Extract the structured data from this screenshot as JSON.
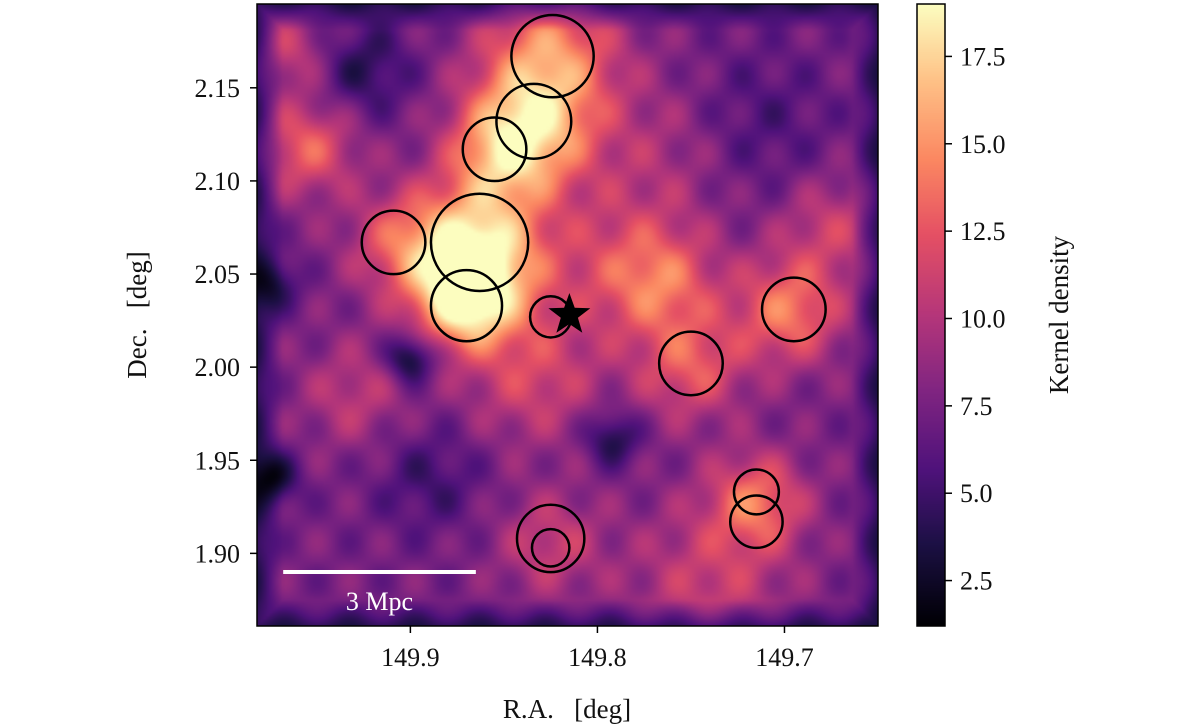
{
  "chart_data": {
    "type": "heatmap",
    "xlabel": "R.A.   [deg]",
    "ylabel": "Dec.   [deg]",
    "xlim": [
      149.982,
      149.65
    ],
    "ylim": [
      1.861,
      2.195
    ],
    "xticks": [
      149.9,
      149.8,
      149.7
    ],
    "xtick_labels": [
      "149.9",
      "149.8",
      "149.7"
    ],
    "yticks": [
      1.9,
      1.95,
      2.0,
      2.05,
      2.1,
      2.15
    ],
    "ytick_labels": [
      "1.90",
      "1.95",
      "2.00",
      "2.05",
      "2.10",
      "2.15"
    ],
    "colormap": "magma",
    "colorbar": {
      "label": "Kernel density",
      "range": [
        1.2,
        19.0
      ],
      "ticks": [
        2.5,
        5.0,
        7.5,
        10.0,
        12.5,
        15.0,
        17.5
      ],
      "tick_labels": [
        "2.5",
        "5.0",
        "7.5",
        "10.0",
        "12.5",
        "15.0",
        "17.5"
      ]
    },
    "density_background": 7.5,
    "density_peaks": [
      {
        "ra": 149.825,
        "dec": 2.17,
        "value": 14,
        "width": 0.025
      },
      {
        "ra": 149.835,
        "dec": 2.13,
        "value": 15.5,
        "width": 0.024
      },
      {
        "ra": 149.852,
        "dec": 2.112,
        "value": 13,
        "width": 0.02
      },
      {
        "ra": 149.865,
        "dec": 2.06,
        "value": 19,
        "width": 0.024
      },
      {
        "ra": 149.87,
        "dec": 2.035,
        "value": 16,
        "width": 0.018
      },
      {
        "ra": 149.905,
        "dec": 2.067,
        "value": 12,
        "width": 0.02
      },
      {
        "ra": 149.955,
        "dec": 2.118,
        "value": 13,
        "width": 0.018
      },
      {
        "ra": 149.965,
        "dec": 2.17,
        "value": 11,
        "width": 0.015
      },
      {
        "ra": 149.698,
        "dec": 2.03,
        "value": 14,
        "width": 0.02
      },
      {
        "ra": 149.75,
        "dec": 2.0,
        "value": 12.5,
        "width": 0.02
      },
      {
        "ra": 149.765,
        "dec": 2.045,
        "value": 12,
        "width": 0.02
      },
      {
        "ra": 149.715,
        "dec": 1.928,
        "value": 13.5,
        "width": 0.018
      },
      {
        "ra": 149.825,
        "dec": 1.905,
        "value": 11,
        "width": 0.02
      },
      {
        "ra": 149.79,
        "dec": 2.055,
        "value": 11,
        "width": 0.03
      },
      {
        "ra": 149.835,
        "dec": 1.995,
        "value": 11.5,
        "width": 0.025
      },
      {
        "ra": 149.675,
        "dec": 2.075,
        "value": 11,
        "width": 0.02
      },
      {
        "ra": 149.74,
        "dec": 1.885,
        "value": 11,
        "width": 0.03
      },
      {
        "ra": 149.93,
        "dec": 1.985,
        "value": 10.5,
        "width": 0.02
      },
      {
        "ra": 149.76,
        "dec": 2.12,
        "value": 10,
        "width": 0.03
      },
      {
        "ra": 149.9,
        "dec": 2.005,
        "value": 1.5,
        "width": 0.009
      },
      {
        "ra": 149.792,
        "dec": 1.962,
        "value": 3,
        "width": 0.01
      },
      {
        "ra": 149.925,
        "dec": 2.16,
        "value": 4,
        "width": 0.018
      },
      {
        "ra": 149.72,
        "dec": 2.13,
        "value": 5,
        "width": 0.03
      },
      {
        "ra": 149.975,
        "dec": 1.94,
        "value": 2,
        "width": 0.01
      },
      {
        "ra": 149.975,
        "dec": 2.045,
        "value": 3,
        "width": 0.01
      },
      {
        "ra": 149.89,
        "dec": 1.94,
        "value": 5,
        "width": 0.02
      }
    ],
    "circles": [
      {
        "ra": 149.824,
        "dec": 2.167,
        "radius": 0.022
      },
      {
        "ra": 149.834,
        "dec": 2.132,
        "radius": 0.02
      },
      {
        "ra": 149.855,
        "dec": 2.117,
        "radius": 0.017
      },
      {
        "ra": 149.863,
        "dec": 2.067,
        "radius": 0.026
      },
      {
        "ra": 149.909,
        "dec": 2.067,
        "radius": 0.017
      },
      {
        "ra": 149.87,
        "dec": 2.033,
        "radius": 0.019
      },
      {
        "ra": 149.825,
        "dec": 2.027,
        "radius": 0.011
      },
      {
        "ra": 149.75,
        "dec": 2.002,
        "radius": 0.017
      },
      {
        "ra": 149.695,
        "dec": 2.031,
        "radius": 0.017
      },
      {
        "ra": 149.715,
        "dec": 1.933,
        "radius": 0.012
      },
      {
        "ra": 149.715,
        "dec": 1.917,
        "radius": 0.014
      },
      {
        "ra": 149.825,
        "dec": 1.908,
        "radius": 0.018
      },
      {
        "ra": 149.825,
        "dec": 1.903,
        "radius": 0.01
      }
    ],
    "star": {
      "ra": 149.815,
      "dec": 2.028
    },
    "scale_bar": {
      "label": "3 Mpc",
      "ra_start": 149.968,
      "ra_end": 149.865,
      "dec": 1.89,
      "color": "#ffffff"
    }
  }
}
